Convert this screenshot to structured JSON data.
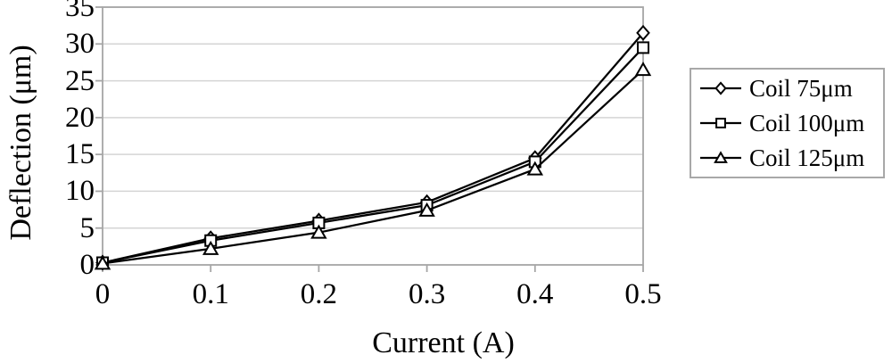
{
  "chart_data": {
    "type": "line",
    "title": "",
    "xlabel": "Current (A)",
    "ylabel": "Deflection (μm)",
    "x": [
      0,
      0.1,
      0.2,
      0.3,
      0.4,
      0.5
    ],
    "x_tick_labels": [
      "0",
      "0.1",
      "0.2",
      "0.3",
      "0.4",
      "0.5"
    ],
    "y_ticks": [
      0,
      5,
      10,
      15,
      20,
      25,
      30,
      35
    ],
    "y_tick_labels": [
      "0",
      "5",
      "10",
      "15",
      "20",
      "25",
      "30",
      "35"
    ],
    "xlim": [
      0,
      0.5
    ],
    "ylim": [
      0,
      35
    ],
    "grid": "horizontal",
    "legend_position": "right-outside",
    "series": [
      {
        "name": "Coil 75μm",
        "marker": "diamond",
        "values": [
          0.3,
          3.6,
          6.0,
          8.5,
          14.5,
          31.5
        ]
      },
      {
        "name": "Coil 100μm",
        "marker": "square",
        "values": [
          0.3,
          3.3,
          5.7,
          8.1,
          14.0,
          29.5
        ]
      },
      {
        "name": "Coil 125μm",
        "marker": "triangle",
        "values": [
          0.2,
          2.2,
          4.4,
          7.4,
          13.0,
          26.5
        ]
      }
    ]
  },
  "styles": {
    "background": "#ffffff",
    "series_color": "#000000",
    "marker_fill": "#ffffff",
    "axis_color": "#a6a6a6",
    "grid_color": "#d4d4d4",
    "tick_color": "#a6a6a6",
    "legend_border_color": "#a8a8a8"
  }
}
